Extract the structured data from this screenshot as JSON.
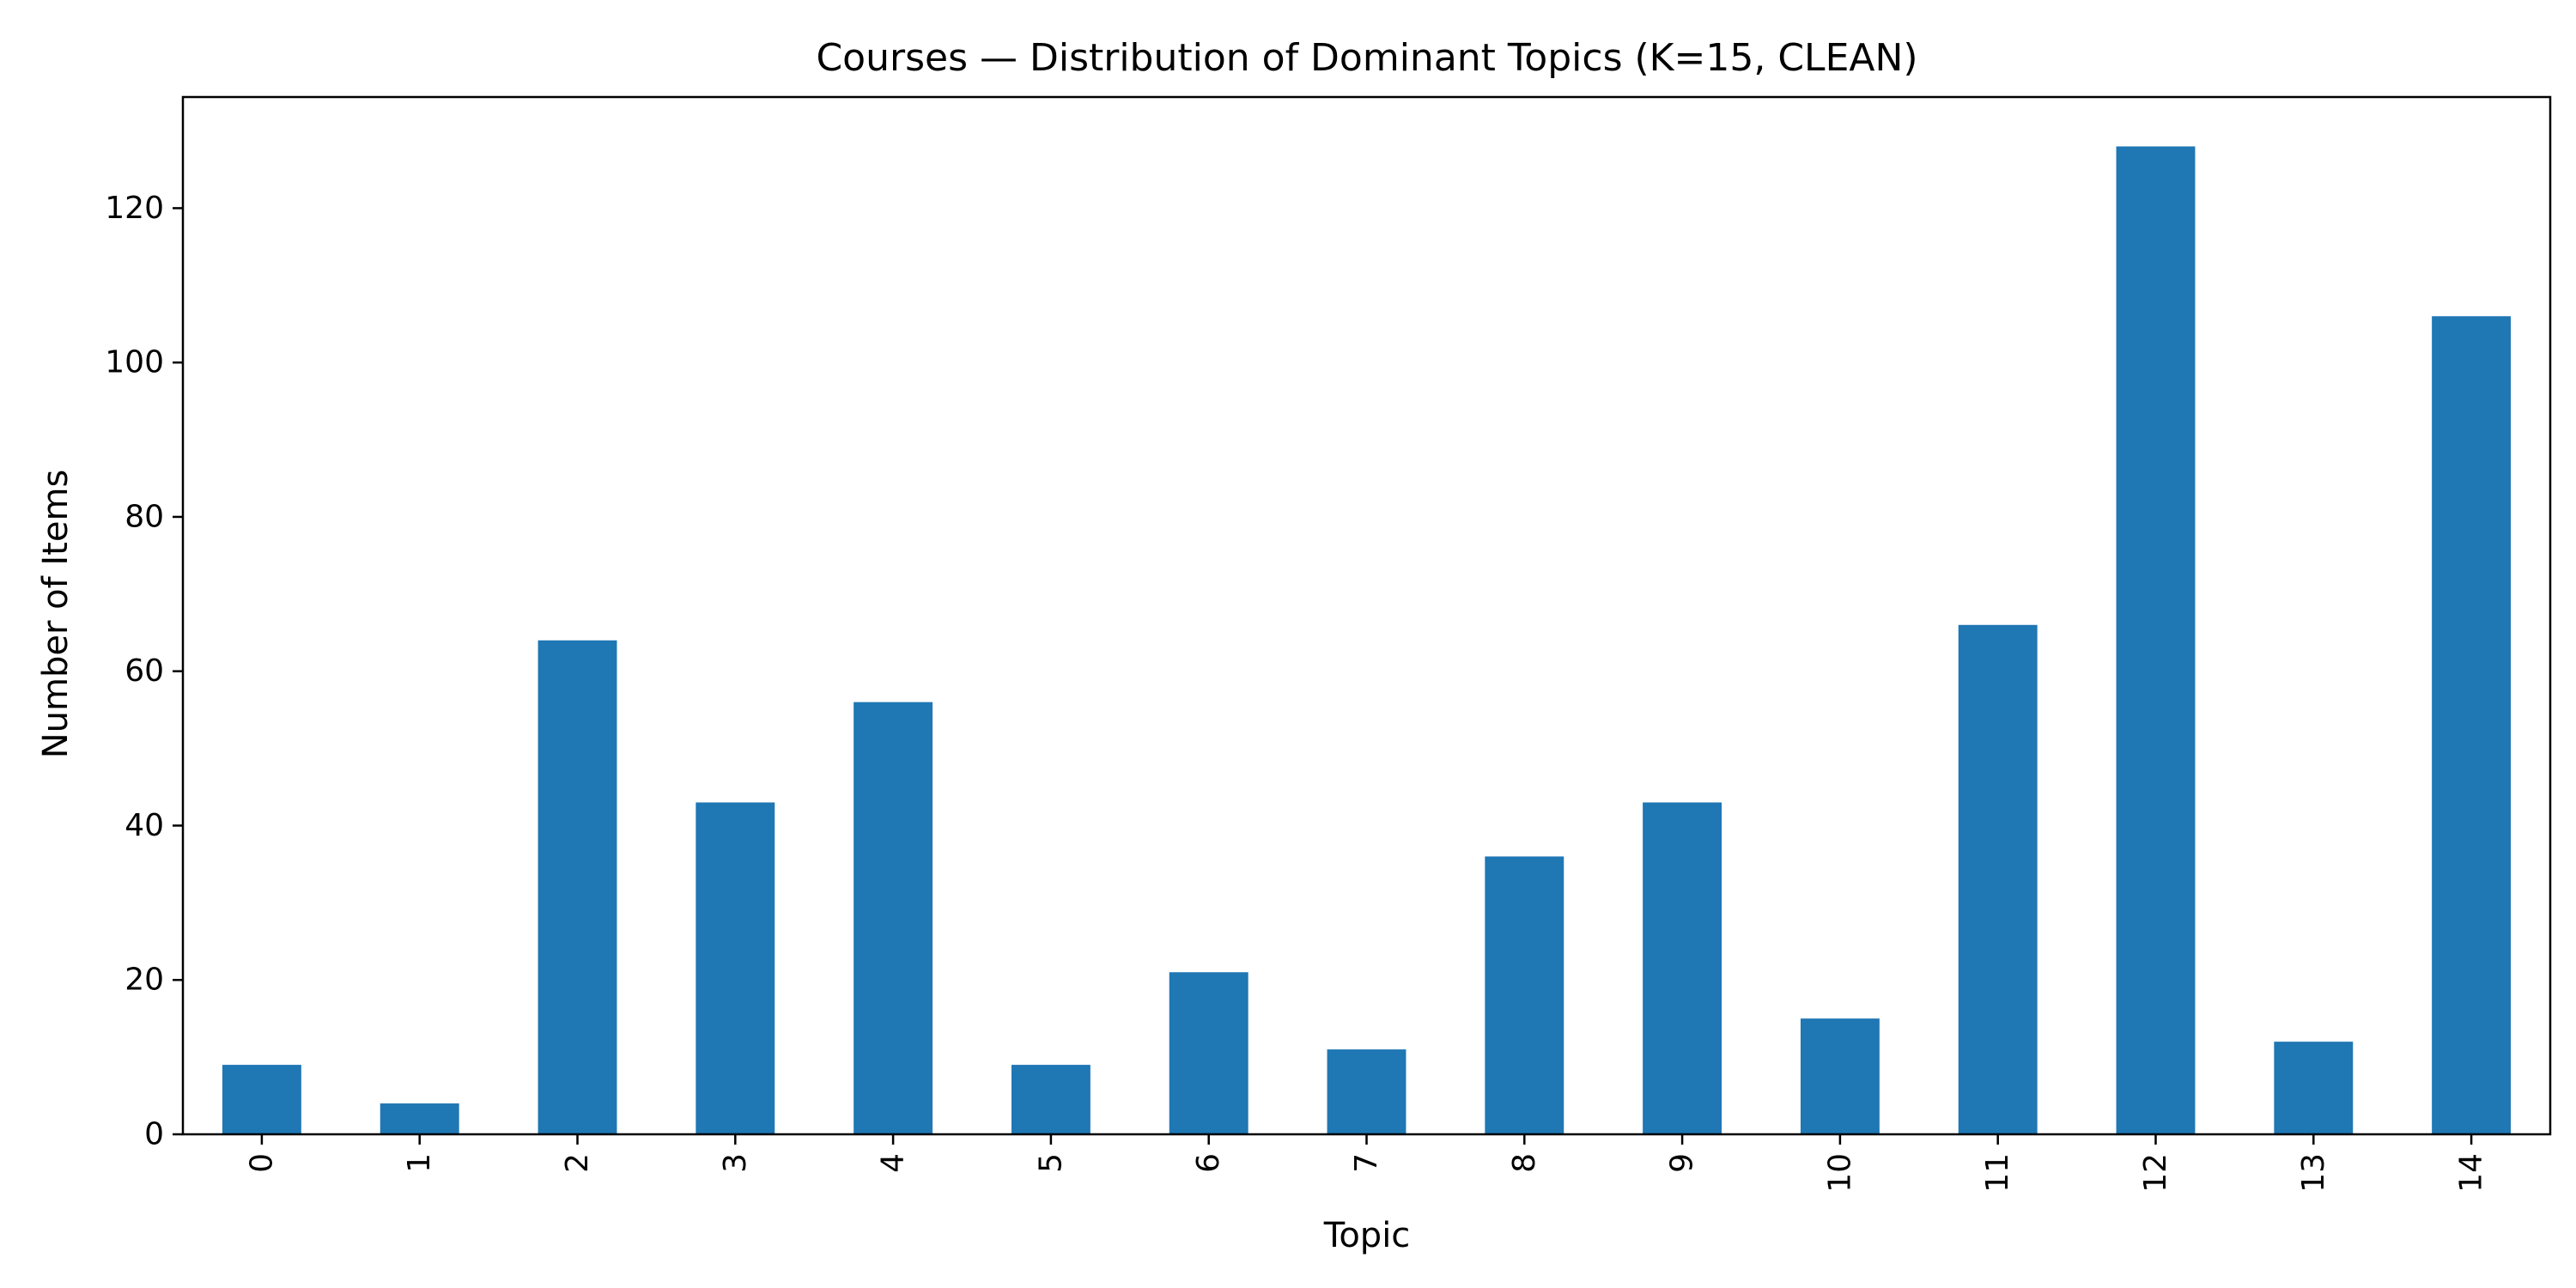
{
  "chart_data": {
    "type": "bar",
    "title": "Courses — Distribution of Dominant Topics (K=15, CLEAN)",
    "xlabel": "Topic",
    "ylabel": "Number of Items",
    "categories": [
      "0",
      "1",
      "2",
      "3",
      "4",
      "5",
      "6",
      "7",
      "8",
      "9",
      "10",
      "11",
      "12",
      "13",
      "14"
    ],
    "values": [
      9,
      4,
      64,
      43,
      56,
      9,
      21,
      11,
      36,
      43,
      15,
      66,
      128,
      12,
      106
    ],
    "ylim": [
      0,
      134.4
    ],
    "yticks": [
      0,
      20,
      40,
      60,
      80,
      100,
      120
    ],
    "grid": false,
    "legend": "none",
    "bar_color": "#1f77b4"
  }
}
